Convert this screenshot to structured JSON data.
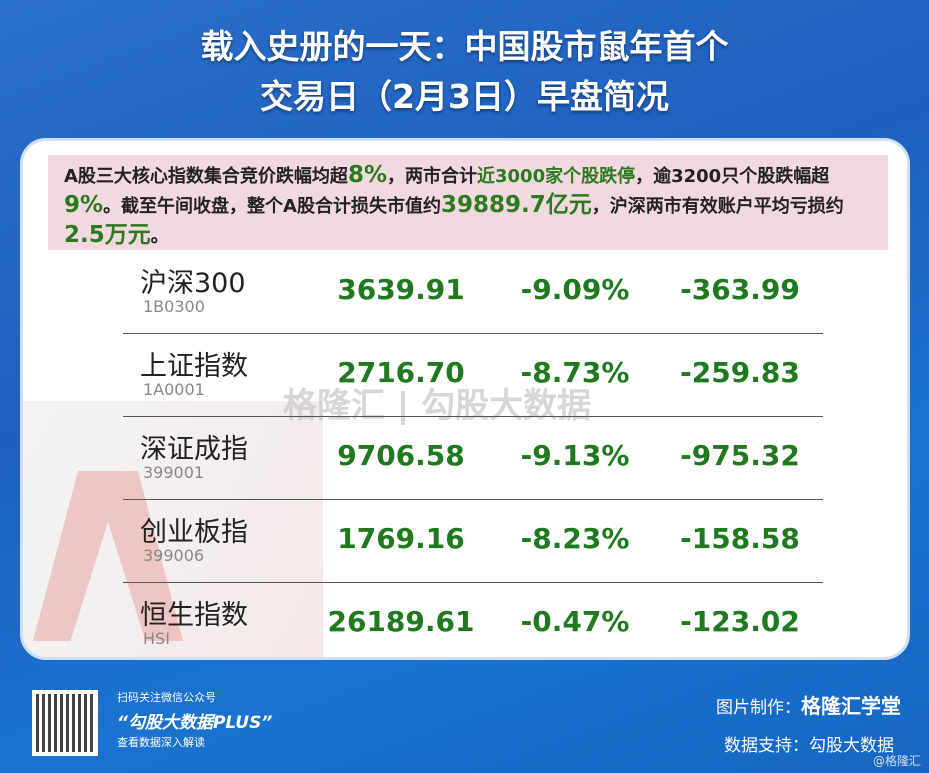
{
  "title": {
    "line1": "载入史册的一天：中国股市鼠年首个",
    "line2": "交易日（2月3日）早盘简况"
  },
  "summary": {
    "p1": "A股三大核心指数集合竞价跌幅均超",
    "h1": "8%",
    "p2": "，两市合计",
    "h2": "近3000家个股跌停",
    "p3": "，逾3200只个股跌幅超",
    "h3": "9%",
    "p4": "。截至午间收盘，整个A股合计损失市值约",
    "h4": "39889.7亿元",
    "p5": "，沪深两市有效账户平均亏损约",
    "h5": "2.5万元",
    "p6": "。"
  },
  "rows": [
    {
      "name": "沪深300",
      "code": "1B0300",
      "price": "3639.91",
      "pct": "-9.09%",
      "chg": "-363.99"
    },
    {
      "name": "上证指数",
      "code": "1A0001",
      "price": "2716.70",
      "pct": "-8.73%",
      "chg": "-259.83"
    },
    {
      "name": "深证成指",
      "code": "399001",
      "price": "9706.58",
      "pct": "-9.13%",
      "chg": "-975.32"
    },
    {
      "name": "创业板指",
      "code": "399006",
      "price": "1769.16",
      "pct": "-8.23%",
      "chg": "-158.58"
    },
    {
      "name": "恒生指数",
      "code": "HSI",
      "price": "26189.61",
      "pct": "-0.47%",
      "chg": "-123.02"
    }
  ],
  "watermark": "格隆汇 | 勾股大数据",
  "footer": {
    "scan": "扫码关注微信公众号",
    "account": "“勾股大数据PLUS”",
    "read": "查看数据深入解读",
    "made_by_label": "图片制作：",
    "made_by": "格隆汇学堂",
    "data_label": "数据支持：勾股大数据",
    "handle": "@格隆汇"
  },
  "colors": {
    "green": "#1f7a1f",
    "background": "#1d5fbf",
    "summary_bg": "#f1d9df"
  }
}
